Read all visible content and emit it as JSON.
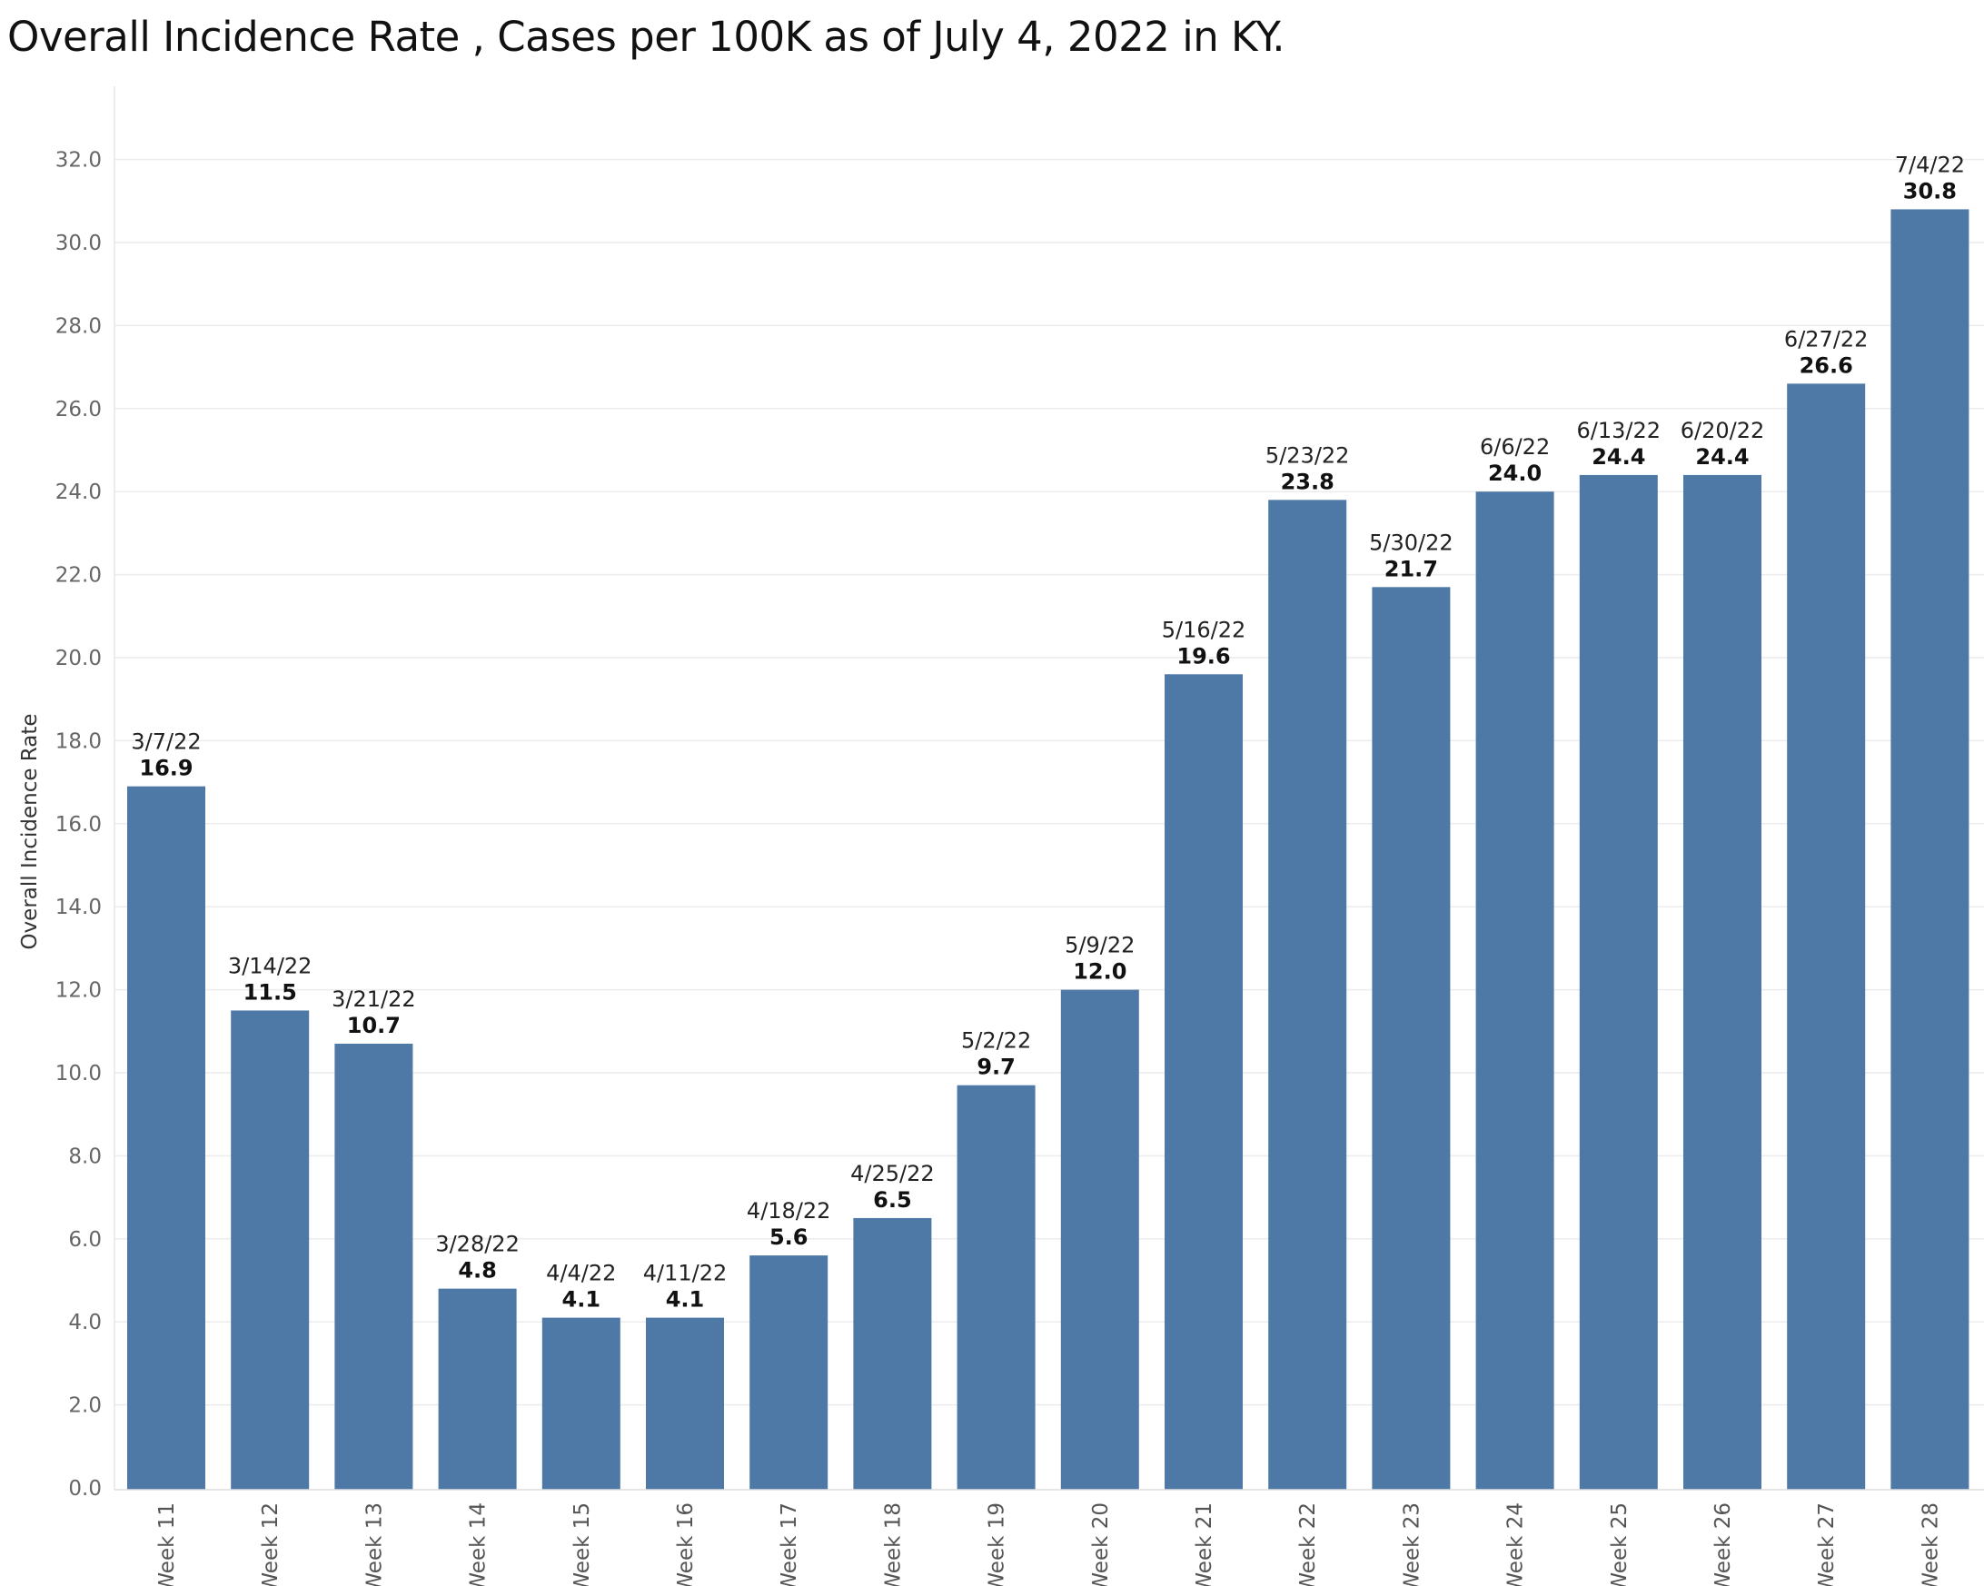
{
  "chart_data": {
    "type": "bar",
    "title": "Overall Incidence Rate , Cases per 100K as of July 4, 2022 in KY.",
    "ylabel": "Overall Incidence Rate",
    "xlabel": "",
    "ylim": [
      0,
      33.5
    ],
    "yticks": [
      "0.0",
      "2.0",
      "4.0",
      "6.0",
      "8.0",
      "10.0",
      "12.0",
      "14.0",
      "16.0",
      "18.0",
      "20.0",
      "22.0",
      "24.0",
      "26.0",
      "28.0",
      "30.0",
      "32.0"
    ],
    "grid": true,
    "bar_color": "#4e79a7",
    "categories": [
      "Week 11",
      "Week 12",
      "Week 13",
      "Week 14",
      "Week 15",
      "Week 16",
      "Week 17",
      "Week 18",
      "Week 19",
      "Week 20",
      "Week 21",
      "Week 22",
      "Week 23",
      "Week 24",
      "Week 25",
      "Week 26",
      "Week 27",
      "Week 28"
    ],
    "dates": [
      "3/7/22",
      "3/14/22",
      "3/21/22",
      "3/28/22",
      "4/4/22",
      "4/11/22",
      "4/18/22",
      "4/25/22",
      "5/2/22",
      "5/9/22",
      "5/16/22",
      "5/23/22",
      "5/30/22",
      "6/6/22",
      "6/13/22",
      "6/20/22",
      "6/27/22",
      "7/4/22"
    ],
    "values": [
      16.9,
      11.5,
      10.7,
      4.8,
      4.1,
      4.1,
      5.6,
      6.5,
      9.7,
      12.0,
      19.6,
      23.8,
      21.7,
      24.0,
      24.4,
      24.4,
      26.6,
      30.8
    ],
    "value_labels": [
      "16.9",
      "11.5",
      "10.7",
      "4.8",
      "4.1",
      "4.1",
      "5.6",
      "6.5",
      "9.7",
      "12.0",
      "19.6",
      "23.8",
      "21.7",
      "24.0",
      "24.4",
      "24.4",
      "26.6",
      "30.8"
    ]
  }
}
